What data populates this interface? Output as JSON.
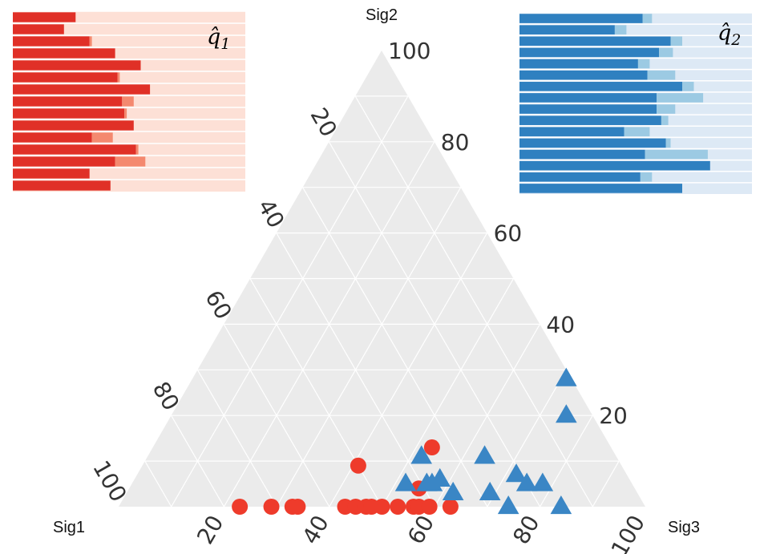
{
  "chart_data": [
    {
      "type": "ternary-scatter",
      "vertex_labels": {
        "left": "Sig1",
        "top": "Sig2",
        "right": "Sig3"
      },
      "ticks": {
        "left_axis": [
          "20",
          "40",
          "60",
          "80",
          "100"
        ],
        "right_axis": [
          "20",
          "40",
          "60",
          "80",
          "100"
        ],
        "bottom_axis": [
          "20",
          "40",
          "60",
          "80",
          "100"
        ]
      },
      "grid": true,
      "colors": {
        "panel": "#ebebeb",
        "grid": "#ffffff",
        "red_points": "#ee3b2b",
        "blue_points": "#3a86c5"
      },
      "series": [
        {
          "marker": "circle",
          "color": "#ee3b2b",
          "points_sig2_sig3": [
            [
              0,
              23
            ],
            [
              0,
              29
            ],
            [
              0,
              33
            ],
            [
              0,
              34
            ],
            [
              0,
              43
            ],
            [
              0,
              45
            ],
            [
              0,
              47
            ],
            [
              0,
              48
            ],
            [
              0,
              50
            ],
            [
              0,
              53
            ],
            [
              0,
              56
            ],
            [
              0,
              57
            ],
            [
              0,
              59
            ],
            [
              0,
              63
            ],
            [
              4,
              55
            ],
            [
              9,
              41
            ],
            [
              13,
              53
            ]
          ]
        },
        {
          "marker": "triangle",
          "color": "#3a86c5",
          "points_sig2_sig3": [
            [
              0,
              74
            ],
            [
              0,
              84
            ],
            [
              3,
              62
            ],
            [
              3,
              69
            ],
            [
              5,
              52
            ],
            [
              5,
              56
            ],
            [
              5,
              57
            ],
            [
              5,
              75
            ],
            [
              5,
              78
            ],
            [
              6,
              58
            ],
            [
              7,
              72
            ],
            [
              11,
              52
            ],
            [
              11,
              64
            ],
            [
              20,
              75
            ],
            [
              28,
              71
            ]
          ]
        }
      ]
    },
    {
      "type": "bar",
      "orientation": "horizontal",
      "stacked": true,
      "label": "q̂",
      "label_subscript": "1",
      "colors": {
        "main": "#e03027",
        "extra": "#f4896f",
        "background": "#fde0d6"
      },
      "main_values": [
        27,
        22,
        33,
        44,
        55,
        45,
        59,
        47,
        48,
        52,
        34,
        53,
        44,
        33,
        42
      ],
      "extra_values": [
        0,
        0,
        1,
        0,
        0,
        1,
        0,
        5,
        1,
        0,
        9,
        1,
        13,
        0,
        0
      ]
    },
    {
      "type": "bar",
      "orientation": "horizontal",
      "stacked": true,
      "label": "q̂",
      "label_subscript": "2",
      "colors": {
        "main": "#2f80c0",
        "extra": "#9ccae3",
        "background": "#dde9f5"
      },
      "main_values": [
        53,
        41,
        65,
        60,
        51,
        55,
        70,
        59,
        59,
        61,
        45,
        63,
        54,
        82,
        52,
        70
      ],
      "extra_values": [
        4,
        5,
        5,
        6,
        5,
        12,
        5,
        20,
        8,
        3,
        11,
        2,
        27,
        0,
        5,
        0
      ]
    }
  ]
}
